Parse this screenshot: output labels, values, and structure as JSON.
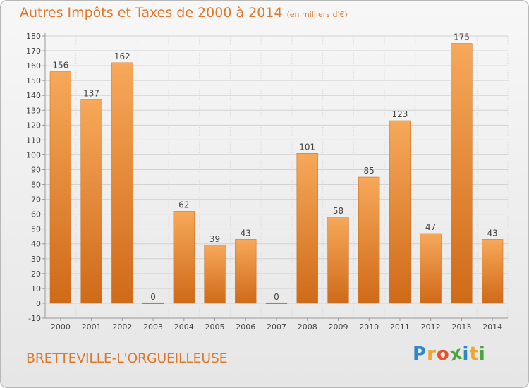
{
  "title": "Autres Impôts et Taxes de 2000 à 2014",
  "subtitle": "(en milliers d'€)",
  "location": "BRETTEVILLE-L'ORGUEILLEUSE",
  "brand": {
    "text": "Proxiti",
    "letters": [
      "P",
      "r",
      "o",
      "x",
      "i",
      "t",
      "i"
    ],
    "colors": [
      "#2f87c8",
      "#f2a52b",
      "#e8502c",
      "#4aa53d",
      "#2f87c8",
      "#f2a52b",
      "#4aa53d"
    ]
  },
  "colors": {
    "bar_top": "#f7a85a",
    "bar_bottom": "#cf6a18",
    "accent": "#e0782a"
  },
  "chart_data": {
    "type": "bar",
    "categories": [
      "2000",
      "2001",
      "2002",
      "2003",
      "2004",
      "2005",
      "2006",
      "2007",
      "2008",
      "2009",
      "2010",
      "2011",
      "2012",
      "2013",
      "2014"
    ],
    "values": [
      156,
      137,
      162,
      0,
      62,
      39,
      43,
      0,
      101,
      58,
      85,
      123,
      47,
      175,
      43
    ],
    "title": "Autres Impôts et Taxes de 2000 à 2014",
    "subtitle": "(en milliers d'€)",
    "xlabel": "",
    "ylabel": "",
    "ylim": [
      -10,
      180
    ],
    "yticks": [
      -10,
      0,
      10,
      20,
      30,
      40,
      50,
      60,
      70,
      80,
      90,
      100,
      110,
      120,
      130,
      140,
      150,
      160,
      170,
      180
    ],
    "grid": true,
    "data_labels": true
  }
}
